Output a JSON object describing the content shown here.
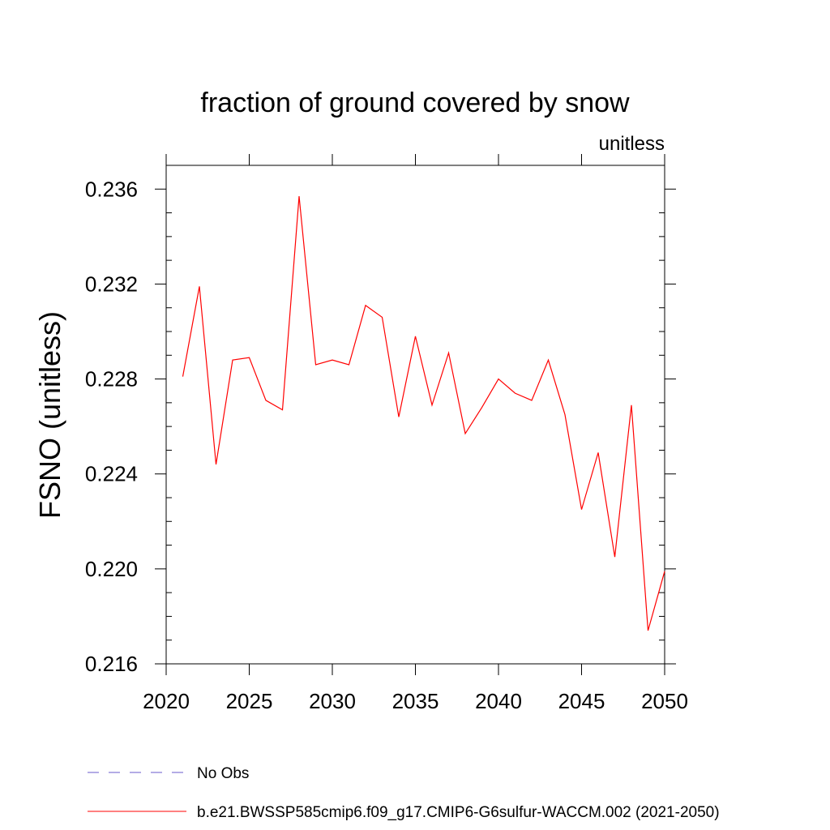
{
  "chart_data": {
    "type": "line",
    "title": "fraction of ground covered by snow",
    "subtitle": "unitless",
    "ylabel": "FSNO  (unitless)",
    "xlabel": "",
    "xlim": [
      2020,
      2050
    ],
    "ylim": [
      0.216,
      0.237
    ],
    "x_ticks": [
      2020,
      2025,
      2030,
      2035,
      2040,
      2045,
      2050
    ],
    "x_tick_labels": [
      "2020",
      "2025",
      "2030",
      "2035",
      "2040",
      "2045",
      "2050"
    ],
    "y_ticks": [
      0.216,
      0.22,
      0.224,
      0.228,
      0.232,
      0.236
    ],
    "y_tick_labels": [
      "0.216",
      "0.220",
      "0.224",
      "0.228",
      "0.232",
      "0.236"
    ],
    "grid": false,
    "legend_placement": "bottom-left",
    "series": [
      {
        "name": "b.e21.BWSSP585cmip6.f09_g17.CMIP6-G6sulfur-WACCM.002 (2021-2050)",
        "color": "#ff0000",
        "line_style": "solid",
        "x": [
          2021,
          2022,
          2023,
          2024,
          2025,
          2026,
          2027,
          2028,
          2029,
          2030,
          2031,
          2032,
          2033,
          2034,
          2035,
          2036,
          2037,
          2038,
          2039,
          2040,
          2041,
          2042,
          2043,
          2044,
          2045,
          2046,
          2047,
          2048,
          2049,
          2050
        ],
        "values": [
          0.2281,
          0.2319,
          0.2244,
          0.2288,
          0.2289,
          0.2271,
          0.2267,
          0.2357,
          0.2286,
          0.2288,
          0.2286,
          0.2311,
          0.2306,
          0.2264,
          0.2298,
          0.2269,
          0.2291,
          0.2257,
          0.2268,
          0.228,
          0.2274,
          0.2271,
          0.2288,
          0.2265,
          0.2225,
          0.2249,
          0.2205,
          0.2269,
          0.2174,
          0.2199
        ]
      }
    ],
    "legend": [
      {
        "label": "No Obs",
        "color": "#6a5acd",
        "line_style": "dashed"
      },
      {
        "label": "b.e21.BWSSP585cmip6.f09_g17.CMIP6-G6sulfur-WACCM.002 (2021-2050)",
        "color": "#ff0000",
        "line_style": "solid"
      }
    ]
  }
}
